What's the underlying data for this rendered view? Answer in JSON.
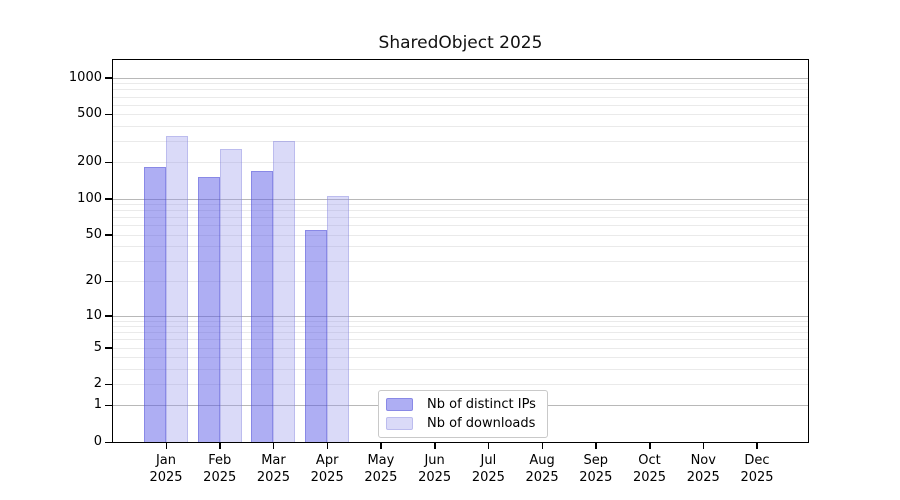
{
  "title": "SharedObject 2025",
  "chart_data": {
    "type": "bar",
    "title": "SharedObject 2025",
    "x_categories": [
      "Jan",
      "Feb",
      "Mar",
      "Apr",
      "May",
      "Jun",
      "Jul",
      "Aug",
      "Sep",
      "Oct",
      "Nov",
      "Dec"
    ],
    "x_year": "2025",
    "series": [
      {
        "name": "Nb of distinct IPs",
        "fill": "rgba(85,85,230,0.48)",
        "edge": "rgba(70,70,205,0.35)",
        "values": [
          183,
          152,
          169,
          55,
          0,
          0,
          0,
          0,
          0,
          0,
          0,
          0
        ]
      },
      {
        "name": "Nb of downloads",
        "fill": "rgba(150,150,235,0.35)",
        "edge": "rgba(120,120,215,0.30)",
        "values": [
          330,
          260,
          300,
          106,
          0,
          0,
          0,
          0,
          0,
          0,
          0,
          0
        ]
      }
    ],
    "scale": "log1p",
    "ylim": [
      0,
      1400
    ],
    "yticks": [
      0,
      1,
      2,
      5,
      10,
      20,
      50,
      100,
      200,
      500,
      1000
    ],
    "major_gridlines": [
      1,
      10,
      100,
      1000
    ],
    "minor_gridlines": [
      2,
      3,
      4,
      5,
      6,
      7,
      8,
      9,
      20,
      30,
      40,
      50,
      60,
      70,
      80,
      90,
      200,
      300,
      400,
      500,
      600,
      700,
      800,
      900
    ],
    "grid": true,
    "legend_position": "lower-center"
  },
  "axis_colors": {
    "grid_major": "#b8b8b8",
    "grid_minor": "#eaeaea",
    "spine": "#000000",
    "text": "#000000"
  }
}
